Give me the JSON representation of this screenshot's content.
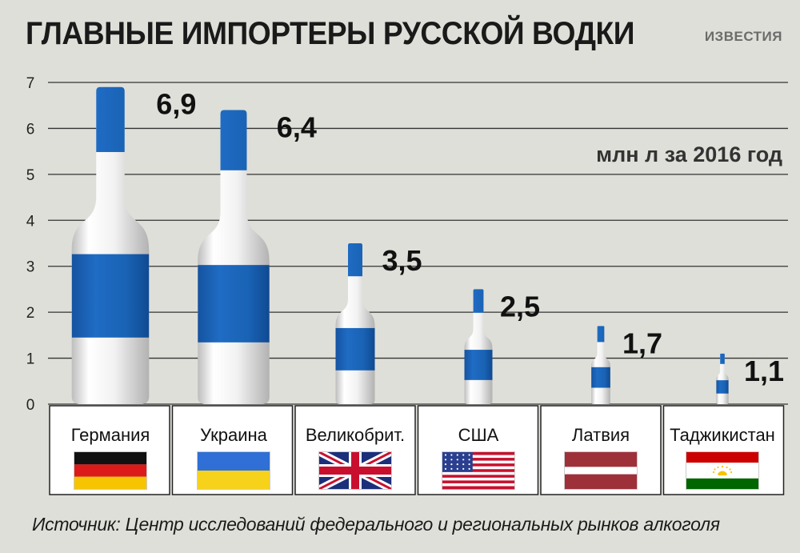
{
  "header": {
    "title": "ГЛАВНЫЕ ИМПОРТЕРЫ РУССКОЙ ВОДКИ",
    "brand": "ИЗВЕСТИЯ"
  },
  "footer": {
    "source": "Источник: Центр исследований федерального и региональных рынков алкоголя"
  },
  "colors": {
    "background": "#dfdfd9",
    "label_blue": "#1a63b5",
    "bottle_white": "#f4f4f4",
    "grid": "#333333"
  },
  "chart_data": {
    "type": "bar",
    "title": "ГЛАВНЫЕ ИМПОРТЕРЫ РУССКОЙ ВОДКИ",
    "subtitle": "млн л за 2016 год",
    "categories": [
      "Германия",
      "Украина",
      "Великобрит.",
      "США",
      "Латвия",
      "Таджикистан"
    ],
    "values": [
      6.9,
      6.4,
      3.5,
      2.5,
      1.7,
      1.1
    ],
    "value_labels": [
      "6,9",
      "6,4",
      "3,5",
      "2,5",
      "1,7",
      "1,1"
    ],
    "flags": [
      "germany-flag",
      "ukraine-flag",
      "uk-flag",
      "usa-flag",
      "latvia-flag",
      "tajikistan-flag"
    ],
    "yticks": [
      0,
      1,
      2,
      3,
      4,
      5,
      6,
      7
    ],
    "ylim": [
      0,
      7
    ],
    "xlabel": "",
    "ylabel": "",
    "grid": true
  }
}
